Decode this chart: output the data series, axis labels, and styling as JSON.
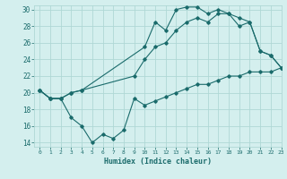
{
  "xlabel": "Humidex (Indice chaleur)",
  "xlim": [
    -0.5,
    23
  ],
  "ylim": [
    13.5,
    30.5
  ],
  "xticks": [
    0,
    1,
    2,
    3,
    4,
    5,
    6,
    7,
    8,
    9,
    10,
    11,
    12,
    13,
    14,
    15,
    16,
    17,
    18,
    19,
    20,
    21,
    22,
    23
  ],
  "yticks": [
    14,
    16,
    18,
    20,
    22,
    24,
    26,
    28,
    30
  ],
  "bg_color": "#d4efee",
  "grid_color": "#afd8d5",
  "line_color": "#1a6b6b",
  "line1_x": [
    0,
    1,
    2,
    3,
    4,
    10,
    11,
    12,
    13,
    14,
    15,
    16,
    17,
    18,
    19,
    20,
    21,
    22,
    23
  ],
  "line1_y": [
    20.3,
    19.3,
    19.3,
    20.0,
    20.3,
    25.5,
    28.5,
    27.5,
    30.0,
    30.3,
    30.3,
    29.5,
    30.0,
    29.5,
    29.0,
    28.5,
    25.0,
    24.5,
    23.0
  ],
  "line2_x": [
    0,
    1,
    2,
    3,
    4,
    9,
    10,
    11,
    12,
    13,
    14,
    15,
    16,
    17,
    18,
    19,
    20,
    21,
    22,
    23
  ],
  "line2_y": [
    20.3,
    19.3,
    19.3,
    20.0,
    20.3,
    22.0,
    24.0,
    25.5,
    26.0,
    27.5,
    28.5,
    29.0,
    28.5,
    29.5,
    29.5,
    28.0,
    28.5,
    25.0,
    24.5,
    23.0
  ],
  "line3_x": [
    0,
    1,
    2,
    3,
    4,
    5,
    6,
    7,
    8,
    9,
    10,
    11,
    12,
    13,
    14,
    15,
    16,
    17,
    18,
    19,
    20,
    21,
    22,
    23
  ],
  "line3_y": [
    20.3,
    19.3,
    19.3,
    17.0,
    16.0,
    14.0,
    15.0,
    14.5,
    15.5,
    19.3,
    18.5,
    19.0,
    19.5,
    20.0,
    20.5,
    21.0,
    21.0,
    21.5,
    22.0,
    22.0,
    22.5,
    22.5,
    22.5,
    23.0
  ]
}
